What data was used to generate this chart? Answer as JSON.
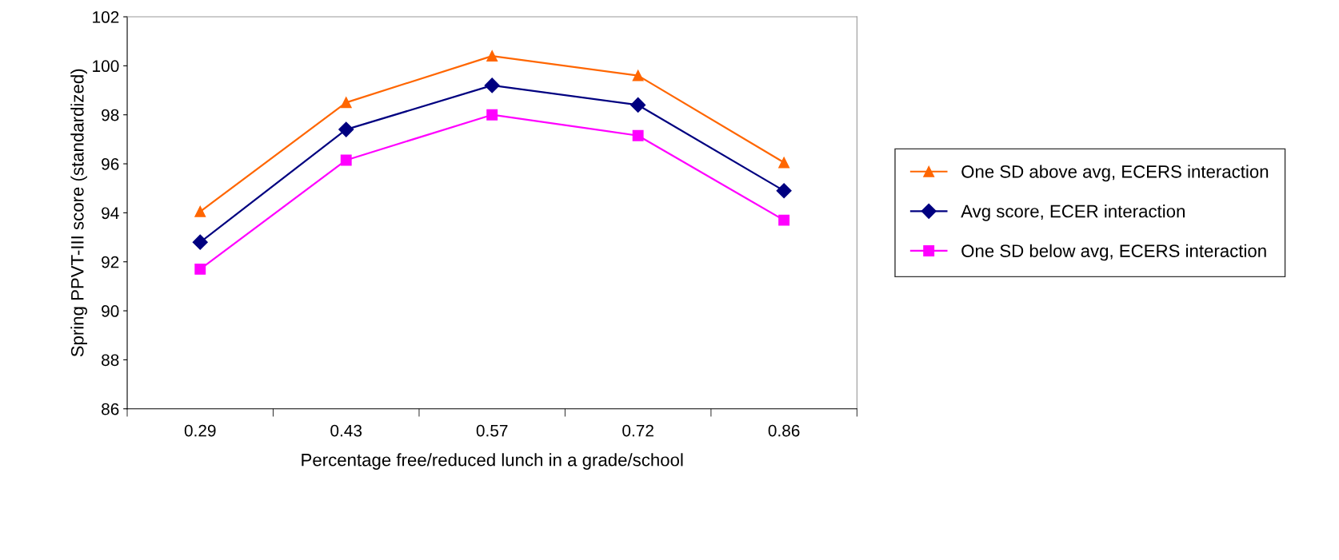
{
  "chart_data": {
    "type": "line",
    "xlabel": "Percentage free/reduced lunch in a grade/school",
    "ylabel": "Spring PPVT-III score (standardized)",
    "categories": [
      "0.29",
      "0.43",
      "0.57",
      "0.72",
      "0.86"
    ],
    "series": [
      {
        "name": "One SD above avg, ECERS interaction",
        "color": "#ff6600",
        "marker": "triangle",
        "values": [
          94.05,
          98.5,
          100.4,
          99.6,
          96.05
        ]
      },
      {
        "name": "Avg score, ECER interaction",
        "color": "#000080",
        "marker": "diamond",
        "values": [
          92.8,
          97.4,
          99.2,
          98.4,
          94.9
        ]
      },
      {
        "name": "One SD below avg, ECERS interaction",
        "color": "#ff00ff",
        "marker": "square",
        "values": [
          91.7,
          96.15,
          98.0,
          97.15,
          93.7
        ]
      }
    ],
    "ylim": [
      86,
      102
    ],
    "yticks": [
      86,
      88,
      90,
      92,
      94,
      96,
      98,
      100,
      102
    ],
    "grid": false,
    "legend": "right",
    "line_style": "solid"
  }
}
